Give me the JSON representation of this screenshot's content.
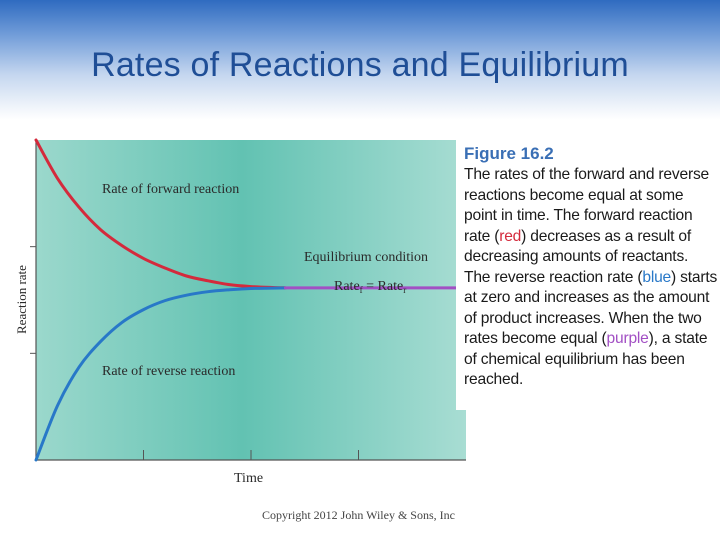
{
  "slide": {
    "title": "Rates of Reactions and Equilibrium",
    "copyright": "Copyright 2012 John Wiley & Sons, Inc"
  },
  "caption": {
    "heading": "Figure 16.2",
    "part1": "The rates of the forward and reverse reactions become equal at some point in time. The forward reaction rate (",
    "red_word": "red",
    "part2": ") decreases as a result of decreasing amounts of reactants. The reverse reaction rate (",
    "blue_word": "blue",
    "part3": ") starts at zero and increases as the amount of product increases. When the two rates become equal (",
    "purple_word": "purple",
    "part4": "), a state of chemical equilibrium has been reached."
  },
  "colors": {
    "forward": "#d42a3c",
    "reverse": "#2878c8",
    "equilibrium": "#a24fc4",
    "plot_bg_edge": "#9bd8cc",
    "plot_bg_center": "#62c2b2"
  },
  "chart_data": {
    "type": "line",
    "title": "",
    "xlabel": "Time",
    "ylabel": "Reaction rate",
    "xlim": [
      0,
      10
    ],
    "ylim": [
      0,
      10
    ],
    "grid": false,
    "annotations": {
      "forward": "Rate of forward reaction",
      "reverse": "Rate of reverse reaction",
      "equilibrium": "Equilibrium condition",
      "rate_eq_left": "Rate",
      "rate_eq_sub_left": "f",
      "rate_eq_mid": " = Rate",
      "rate_eq_sub_right": "r"
    },
    "series": [
      {
        "key": "forward",
        "color": "#d42a3c",
        "x": [
          0,
          0.5,
          1,
          1.5,
          2,
          2.5,
          3,
          3.5,
          4,
          4.5,
          5,
          5.5,
          5.8
        ],
        "y": [
          10,
          8.8,
          7.9,
          7.2,
          6.7,
          6.3,
          6.0,
          5.75,
          5.6,
          5.48,
          5.42,
          5.39,
          5.38
        ]
      },
      {
        "key": "reverse",
        "color": "#2878c8",
        "x": [
          0,
          0.5,
          1,
          1.5,
          2,
          2.5,
          3,
          3.5,
          4,
          4.5,
          5,
          5.5,
          5.8
        ],
        "y": [
          0,
          1.7,
          2.9,
          3.7,
          4.3,
          4.7,
          4.98,
          5.15,
          5.26,
          5.32,
          5.36,
          5.37,
          5.38
        ]
      },
      {
        "key": "equilibrium",
        "color": "#a24fc4",
        "x": [
          5.8,
          10
        ],
        "y": [
          5.38,
          5.38
        ]
      }
    ]
  }
}
